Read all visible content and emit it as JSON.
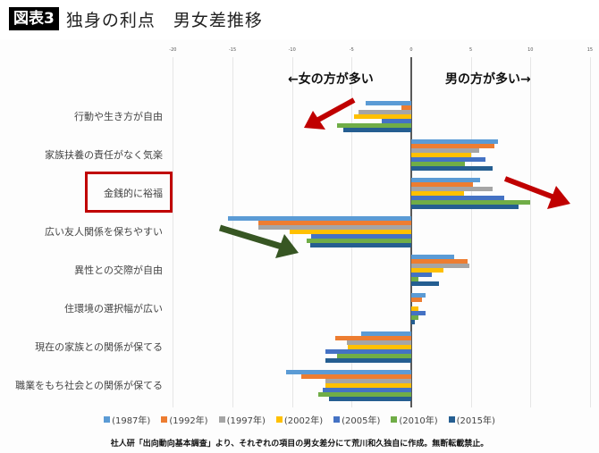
{
  "header": {
    "badge": "図表3",
    "title": "独身の利点　男女差推移"
  },
  "annotations": {
    "female_more": "←女の方が多い",
    "male_more": "男の方が多い→",
    "highlighted_category": "金銭的に裕福",
    "colors": {
      "red_arrow": "#c00000",
      "green_arrow": "#375623",
      "highlight_box": "#c00000"
    }
  },
  "footnote": "社人研「出向動向基本調査」より、それぞれの項目の男女差分にて荒川和久独自に作成。無断転載禁止。",
  "chart_data": {
    "type": "bar",
    "orientation": "horizontal",
    "title": "独身の利点　男女差推移",
    "xlabel": "",
    "ylabel": "",
    "xlim": [
      -20,
      15
    ],
    "xticks": [
      "-20",
      "-15",
      "-10",
      "-5",
      "0",
      "5",
      "10",
      "15"
    ],
    "grid": true,
    "legend_position": "bottom",
    "categories": [
      "行動や生き方が自由",
      "家族扶養の責任がなく気楽",
      "金銭的に裕福",
      "広い友人関係を保ちやすい",
      "異性との交際が自由",
      "住環境の選択幅が広い",
      "現在の家族との関係が保てる",
      "職業をもち社会との関係が保てる"
    ],
    "series": [
      {
        "name": "(1987年)",
        "color": "#5b9bd5",
        "values": [
          -3.8,
          7.3,
          5.8,
          -15.4,
          3.6,
          1.2,
          -4.2,
          -10.5
        ]
      },
      {
        "name": "(1992年)",
        "color": "#ed7d31",
        "values": [
          -0.8,
          7.0,
          5.2,
          -12.8,
          4.7,
          0.9,
          -6.4,
          -9.2
        ]
      },
      {
        "name": "(1997年)",
        "color": "#a5a5a5",
        "values": [
          -4.4,
          5.7,
          6.8,
          -12.8,
          4.9,
          0.0,
          -5.4,
          -7.2
        ]
      },
      {
        "name": "(2002年)",
        "color": "#ffc000",
        "values": [
          -4.8,
          5.0,
          4.4,
          -10.2,
          2.7,
          0.6,
          -5.3,
          -7.2
        ]
      },
      {
        "name": "(2005年)",
        "color": "#4472c4",
        "values": [
          -2.5,
          6.2,
          7.8,
          -8.4,
          1.7,
          1.2,
          -7.2,
          -7.4
        ]
      },
      {
        "name": "(2010年)",
        "color": "#70ad47",
        "values": [
          -6.2,
          4.5,
          10.0,
          -8.8,
          0.6,
          0.6,
          -6.2,
          -7.8
        ]
      },
      {
        "name": "(2015年)",
        "color": "#255e91",
        "values": [
          -5.7,
          6.8,
          9.0,
          -8.5,
          2.3,
          0.3,
          -7.2,
          -6.9
        ]
      }
    ]
  }
}
